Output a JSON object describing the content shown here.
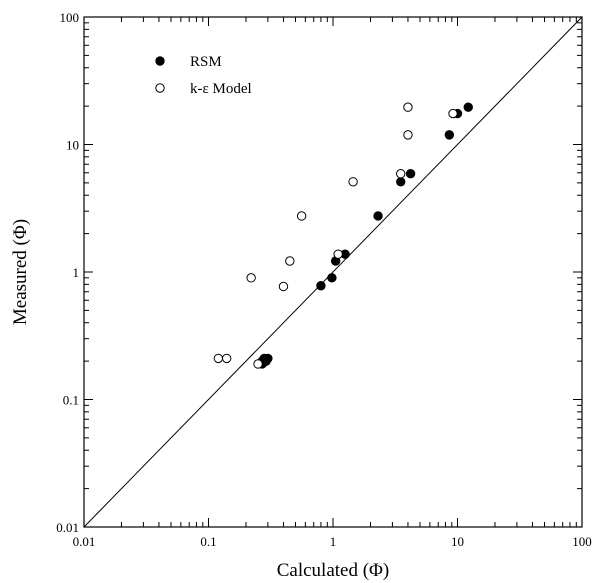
{
  "chart_data": {
    "type": "scatter",
    "x_scale": "log",
    "y_scale": "log",
    "xlim": [
      0.01,
      100
    ],
    "ylim": [
      0.01,
      100
    ],
    "xlabel": "Calculated (Φ)",
    "ylabel": "Measured (Φ)",
    "title": "",
    "grid": false,
    "legend": "top-left",
    "x_tick_labels": [
      "0.01",
      "0.1",
      "1",
      "10",
      "100"
    ],
    "y_tick_labels": [
      "0.01",
      "0.1",
      "1",
      "10",
      "100"
    ],
    "reference_line": {
      "label": "y = x",
      "from": [
        0.01,
        0.01
      ],
      "to": [
        100,
        100
      ]
    },
    "series": [
      {
        "name": "RSM",
        "marker": "filled-circle",
        "color": "#000000",
        "points": [
          [
            0.27,
            0.19
          ],
          [
            0.28,
            0.21
          ],
          [
            0.29,
            0.2
          ],
          [
            0.3,
            0.21
          ],
          [
            0.27,
            0.2
          ],
          [
            0.8,
            0.78
          ],
          [
            0.98,
            0.9
          ],
          [
            1.05,
            1.22
          ],
          [
            1.25,
            1.38
          ],
          [
            2.3,
            2.75
          ],
          [
            3.5,
            5.1
          ],
          [
            4.2,
            5.9
          ],
          [
            8.6,
            11.9
          ],
          [
            10.0,
            17.5
          ],
          [
            12.2,
            19.6
          ]
        ]
      },
      {
        "name": "k-ε Model",
        "marker": "open-circle",
        "color": "#000000",
        "points": [
          [
            0.12,
            0.21
          ],
          [
            0.14,
            0.21
          ],
          [
            0.25,
            0.19
          ],
          [
            0.22,
            0.9
          ],
          [
            0.4,
            0.77
          ],
          [
            0.45,
            1.22
          ],
          [
            0.56,
            2.75
          ],
          [
            1.1,
            1.38
          ],
          [
            1.45,
            5.1
          ],
          [
            3.5,
            5.9
          ],
          [
            4.0,
            11.9
          ],
          [
            4.0,
            19.6
          ],
          [
            9.2,
            17.5
          ]
        ]
      }
    ]
  }
}
